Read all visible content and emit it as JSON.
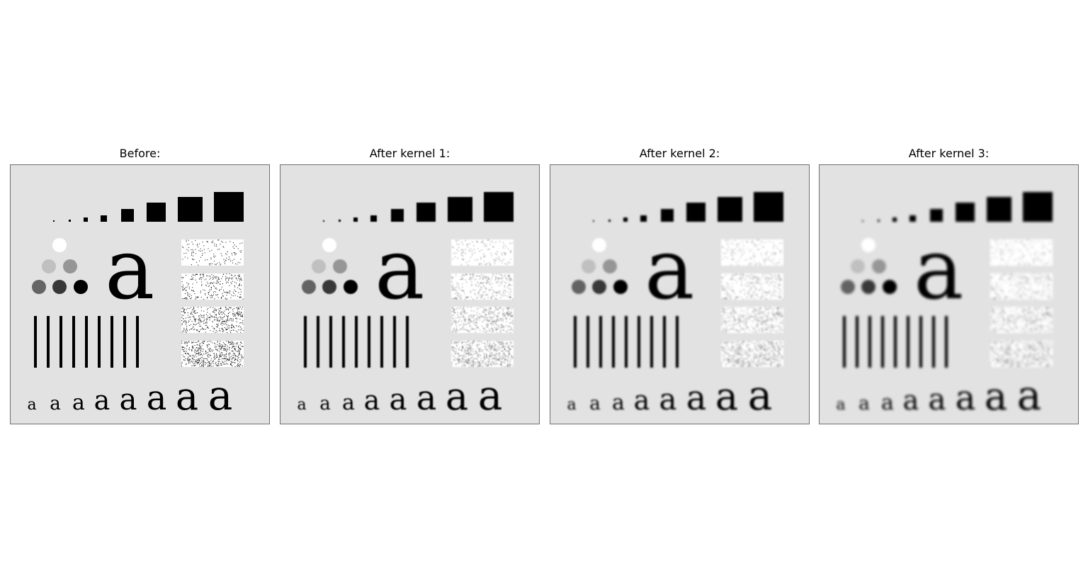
{
  "figure": {
    "panels": [
      {
        "id": "before",
        "title": "Before:",
        "blur": 0
      },
      {
        "id": "kernel1",
        "title": "After kernel 1:",
        "blur": 0.7
      },
      {
        "id": "kernel2",
        "title": "After kernel 2:",
        "blur": 1.2
      },
      {
        "id": "kernel3",
        "title": "After kernel 3:",
        "blur": 1.9
      }
    ],
    "test_pattern": {
      "background_color": "#e2e2e2",
      "ink_color": "#000000",
      "big_letter": "a",
      "small_letters": [
        "a",
        "a",
        "a",
        "a",
        "a",
        "a",
        "a",
        "a"
      ],
      "circle_colors": [
        "#ffffff",
        "#c0c0c0",
        "#969696",
        "#646464",
        "#383838",
        "#000000"
      ],
      "noise_densities": [
        0.15,
        0.3,
        0.45,
        0.6
      ]
    }
  }
}
